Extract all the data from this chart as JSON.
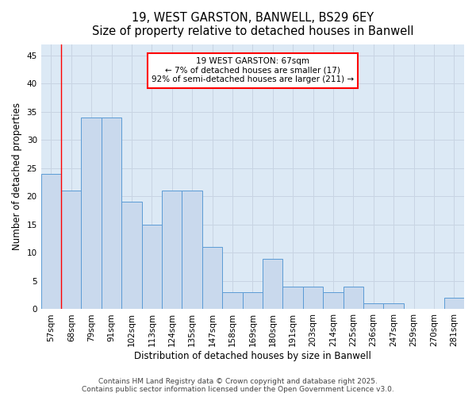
{
  "title_line1": "19, WEST GARSTON, BANWELL, BS29 6EY",
  "title_line2": "Size of property relative to detached houses in Banwell",
  "xlabel": "Distribution of detached houses by size in Banwell",
  "ylabel": "Number of detached properties",
  "categories": [
    "57sqm",
    "68sqm",
    "79sqm",
    "91sqm",
    "102sqm",
    "113sqm",
    "124sqm",
    "135sqm",
    "147sqm",
    "158sqm",
    "169sqm",
    "180sqm",
    "191sqm",
    "203sqm",
    "214sqm",
    "225sqm",
    "236sqm",
    "247sqm",
    "259sqm",
    "270sqm",
    "281sqm"
  ],
  "values": [
    24,
    21,
    34,
    34,
    19,
    15,
    21,
    21,
    11,
    3,
    3,
    9,
    4,
    4,
    3,
    4,
    1,
    1,
    0,
    0,
    2
  ],
  "bar_color": "#c9d9ed",
  "bar_edge_color": "#5b9bd5",
  "annotation_text_line1": "19 WEST GARSTON: 67sqm",
  "annotation_text_line2": "← 7% of detached houses are smaller (17)",
  "annotation_text_line3": "92% of semi-detached houses are larger (211) →",
  "annotation_box_color": "white",
  "annotation_box_edge_color": "red",
  "redline_x": 0.5,
  "ylim": [
    0,
    47
  ],
  "yticks": [
    0,
    5,
    10,
    15,
    20,
    25,
    30,
    35,
    40,
    45
  ],
  "grid_color": "#c8d4e3",
  "background_color": "#dce9f5",
  "footer_line1": "Contains HM Land Registry data © Crown copyright and database right 2025.",
  "footer_line2": "Contains public sector information licensed under the Open Government Licence v3.0.",
  "title_fontsize": 10.5,
  "axis_label_fontsize": 8.5,
  "tick_fontsize": 7.5,
  "annotation_fontsize": 7.5,
  "footer_fontsize": 6.5
}
